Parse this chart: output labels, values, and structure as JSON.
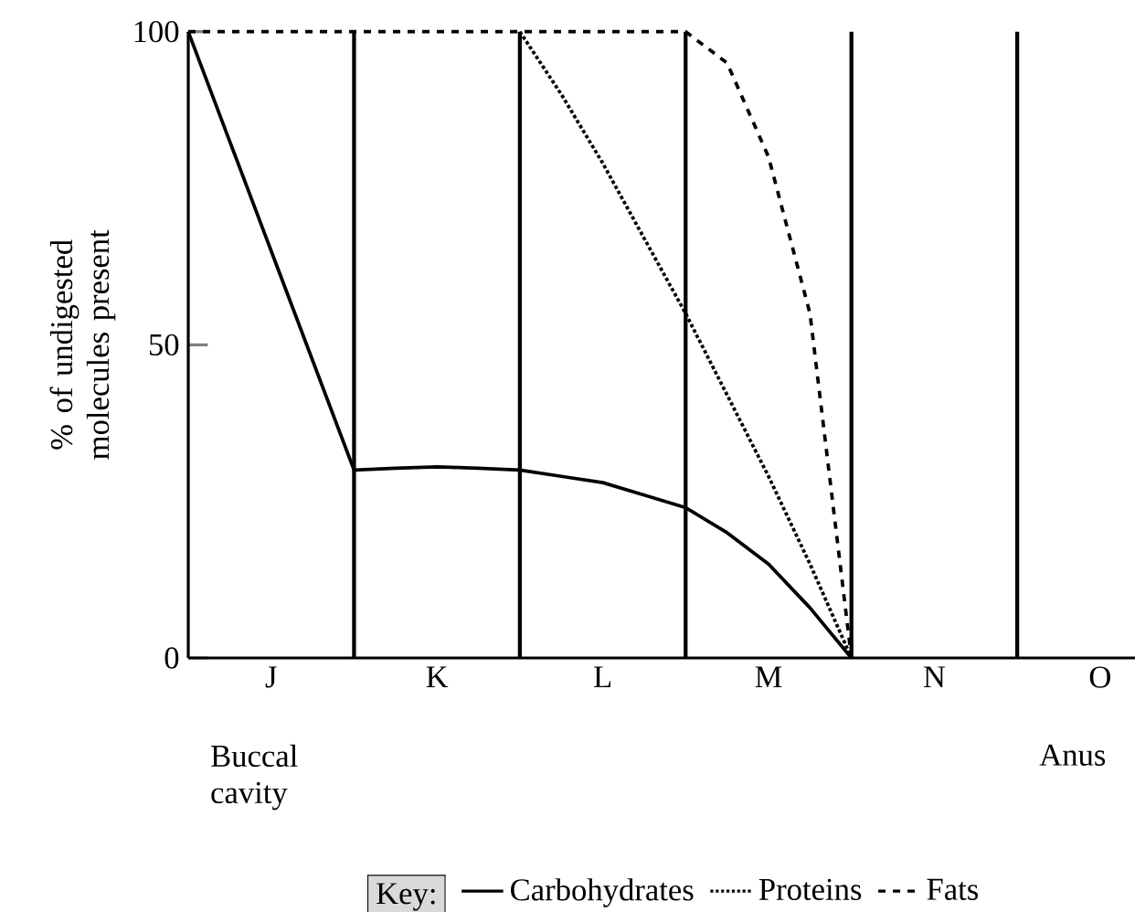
{
  "chart_data": {
    "type": "line",
    "ylabel": "% of undigested molecules present",
    "legend_title": "Key:",
    "legend": "bottom",
    "grid": "x",
    "ylim": [
      0,
      100
    ],
    "yticks": [
      0,
      50,
      100
    ],
    "categories": [
      null,
      null,
      "J",
      null,
      null,
      null,
      "K",
      null,
      null,
      null,
      "L",
      null,
      null,
      null,
      "M",
      null,
      null,
      null,
      "N",
      null,
      null,
      null,
      "O",
      null
    ],
    "series": [
      {
        "name": "Carbohydrates",
        "color": "#000000",
        "line_style": "solid",
        "values": [
          100,
          82.5,
          65,
          47.5,
          30,
          30.3,
          30.5,
          30.3,
          30,
          29,
          28,
          26,
          24,
          20,
          15,
          8,
          0,
          null,
          null,
          null,
          null,
          null,
          null,
          null
        ]
      },
      {
        "name": "Proteins",
        "color": "#000000",
        "line_style": "dotted",
        "values": [
          null,
          null,
          null,
          null,
          null,
          null,
          null,
          null,
          100,
          90,
          79,
          67,
          55,
          42,
          29,
          15,
          0,
          null,
          null,
          null,
          null,
          null,
          null,
          null
        ]
      },
      {
        "name": "Fats",
        "color": "#000000",
        "line_style": "dashed",
        "values": [
          100,
          100,
          100,
          100,
          100,
          100,
          100,
          100,
          100,
          100,
          100,
          100,
          100,
          95,
          80,
          55,
          0,
          null,
          null,
          null,
          null,
          null,
          null,
          null
        ]
      }
    ],
    "annotations": [
      "Buccal cavity",
      "Anus"
    ]
  }
}
